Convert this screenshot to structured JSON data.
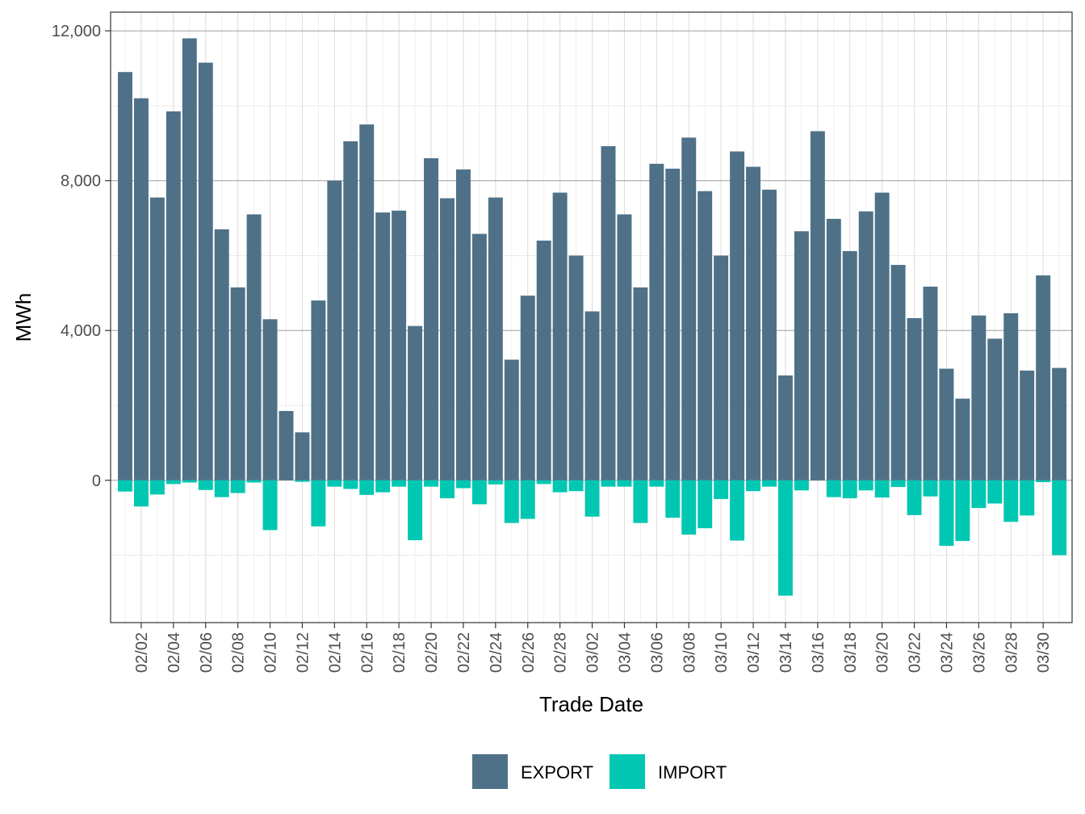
{
  "chart_data": {
    "type": "bar",
    "xlabel": "Trade Date",
    "ylabel": "MWh",
    "ylim": [
      -3800,
      12500
    ],
    "y_ticks": [
      0,
      4000,
      8000,
      12000
    ],
    "y_tick_labels": [
      "0",
      "4,000",
      "8,000",
      "12,000"
    ],
    "grid": true,
    "legend_position": "bottom",
    "categories": [
      "02/01",
      "02/02",
      "02/03",
      "02/04",
      "02/05",
      "02/06",
      "02/07",
      "02/08",
      "02/09",
      "02/10",
      "02/11",
      "02/12",
      "02/13",
      "02/14",
      "02/15",
      "02/16",
      "02/17",
      "02/18",
      "02/19",
      "02/20",
      "02/21",
      "02/22",
      "02/23",
      "02/24",
      "02/25",
      "02/26",
      "02/27",
      "02/28",
      "03/01",
      "03/02",
      "03/03",
      "03/04",
      "03/05",
      "03/06",
      "03/07",
      "03/08",
      "03/09",
      "03/10",
      "03/11",
      "03/12",
      "03/13",
      "03/14",
      "03/15",
      "03/16",
      "03/17",
      "03/18",
      "03/19",
      "03/20",
      "03/21",
      "03/22",
      "03/23",
      "03/24",
      "03/25",
      "03/26",
      "03/27",
      "03/28",
      "03/29",
      "03/30",
      "03/31"
    ],
    "x_tick_labels": [
      "02/02",
      "02/04",
      "02/06",
      "02/08",
      "02/10",
      "02/12",
      "02/14",
      "02/16",
      "02/18",
      "02/20",
      "02/22",
      "02/24",
      "02/26",
      "02/28",
      "03/02",
      "03/04",
      "03/06",
      "03/08",
      "03/10",
      "03/12",
      "03/14",
      "03/16",
      "03/18",
      "03/20",
      "03/22",
      "03/24",
      "03/26",
      "03/28",
      "03/30"
    ],
    "series": [
      {
        "name": "EXPORT",
        "color": "#4e7188",
        "values": [
          10900,
          10200,
          7550,
          9850,
          11800,
          11150,
          6700,
          5150,
          7100,
          4300,
          1850,
          1280,
          4800,
          8000,
          9050,
          9500,
          7150,
          7200,
          4120,
          8600,
          7530,
          8300,
          6580,
          7550,
          3220,
          4930,
          6400,
          7680,
          6000,
          4510,
          8920,
          7100,
          5150,
          8450,
          8320,
          9150,
          7720,
          6000,
          8780,
          8370,
          7760,
          2800,
          6650,
          9320,
          6980,
          6120,
          7180,
          7680,
          5750,
          4330,
          5170,
          2980,
          2180,
          4400,
          3780,
          4460,
          2930,
          5470,
          3000
        ]
      },
      {
        "name": "IMPORT",
        "color": "#00c7b1",
        "values": [
          -300,
          -700,
          -380,
          -100,
          -60,
          -260,
          -450,
          -340,
          -60,
          -1330,
          0,
          -40,
          -1230,
          -170,
          -230,
          -390,
          -320,
          -170,
          -1600,
          -170,
          -480,
          -210,
          -640,
          -110,
          -1140,
          -1030,
          -100,
          -320,
          -290,
          -970,
          -170,
          -170,
          -1140,
          -170,
          -1000,
          -1450,
          -1280,
          -500,
          -1610,
          -290,
          -170,
          -3080,
          -270,
          0,
          -450,
          -480,
          -270,
          -460,
          -180,
          -930,
          -430,
          -1750,
          -1620,
          -740,
          -620,
          -1110,
          -940,
          -50,
          -2000
        ]
      }
    ]
  }
}
